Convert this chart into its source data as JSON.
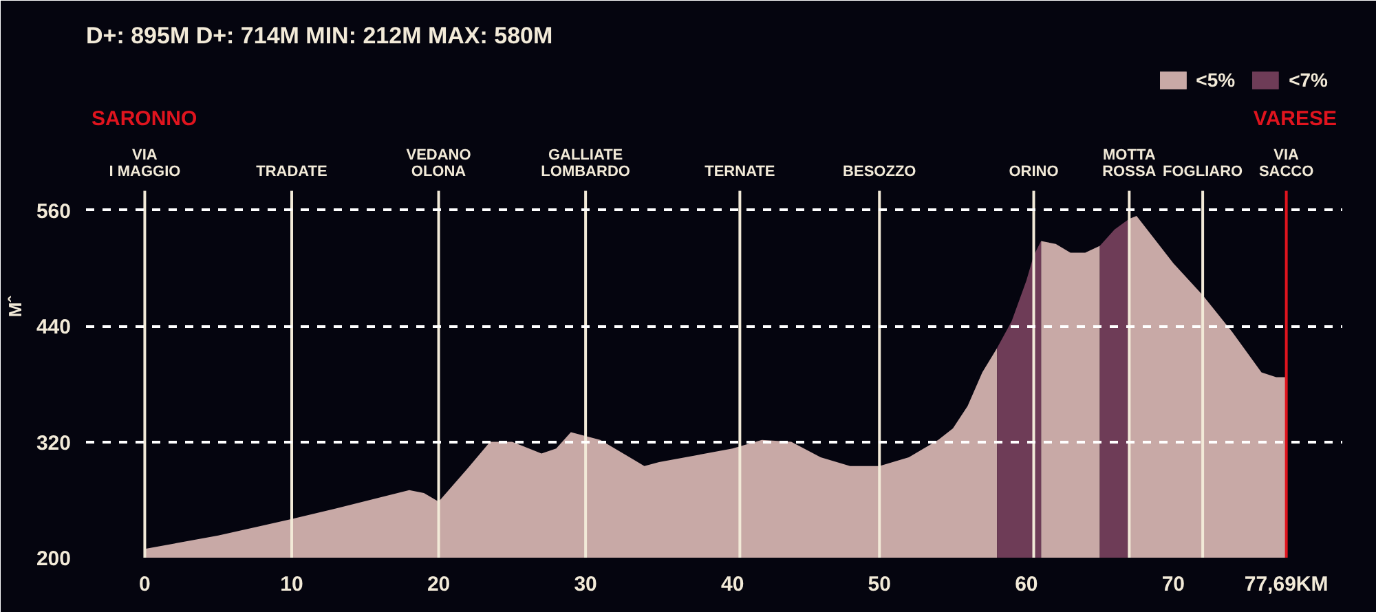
{
  "chart_data": {
    "type": "area",
    "title": "D+: 895M   D+: 714M   MIN: 212M   MAX: 580M",
    "ylabel": "Mˆ",
    "series": [
      {
        "name": "<5%",
        "color": "#c8a9a6",
        "x": [
          0,
          5,
          10,
          13,
          18,
          19,
          20,
          22,
          23.5,
          25,
          27,
          28,
          29,
          31,
          33,
          34,
          35,
          40,
          42,
          44,
          46,
          48,
          50,
          52,
          54,
          55,
          56,
          57,
          58,
          null,
          61,
          62,
          63,
          64,
          65,
          null,
          67,
          67.5,
          70,
          72,
          74,
          76,
          77,
          77.69
        ],
        "values": [
          209,
          223,
          240,
          251,
          270,
          267,
          258,
          293,
          320,
          320,
          308,
          313,
          330,
          322,
          304,
          295,
          299,
          313,
          322,
          320,
          304,
          295,
          295,
          304,
          322,
          334,
          357,
          392,
          417,
          null,
          528,
          525,
          516,
          516,
          523,
          null,
          551,
          554,
          505,
          472,
          434,
          392,
          387,
          387
        ]
      },
      {
        "name": "<7%",
        "color": "#6e3c57",
        "x": [
          58,
          59,
          60,
          60.5,
          61,
          null,
          65,
          66,
          67
        ],
        "values": [
          417,
          445,
          487,
          513,
          528,
          null,
          523,
          540,
          551
        ]
      }
    ],
    "xlim": [
      -4,
      81.5
    ],
    "ylim": [
      200,
      720
    ],
    "xticks": [
      0,
      10,
      20,
      30,
      40,
      50,
      60,
      70,
      {
        "value": 77.69,
        "label": "77,69KM"
      }
    ],
    "yticks": [
      200,
      320,
      440,
      560
    ],
    "grid": "y",
    "legend": "top right",
    "ref_lines": [
      {
        "axis": "x",
        "value": 0,
        "label": "VIA\nI MAGGIO",
        "color": "#f2ead8"
      },
      {
        "axis": "x",
        "value": 10,
        "label": "TRADATE",
        "color": "#f2ead8"
      },
      {
        "axis": "x",
        "value": 20,
        "label": "VEDANO\nOLONA",
        "color": "#f2ead8"
      },
      {
        "axis": "x",
        "value": 30,
        "label": "GALLIATE\nLOMBARDO",
        "color": "#f2ead8"
      },
      {
        "axis": "x",
        "value": 40.5,
        "label": "TERNATE",
        "color": "#f2ead8"
      },
      {
        "axis": "x",
        "value": 50,
        "label": "BESOZZO",
        "color": "#f2ead8"
      },
      {
        "axis": "x",
        "value": 60.5,
        "label": "ORINO",
        "color": "#f2ead8"
      },
      {
        "axis": "x",
        "value": 67,
        "label": "MOTTA\nROSSA",
        "color": "#f2ead8"
      },
      {
        "axis": "x",
        "value": 72,
        "label": "FOGLIARO",
        "color": "#f2ead8"
      },
      {
        "axis": "x",
        "value": 77.69,
        "label": "VIA\nSACCO",
        "color": "#e0141e"
      }
    ],
    "annotations": [
      "SARONNO",
      "VARESE"
    ]
  }
}
